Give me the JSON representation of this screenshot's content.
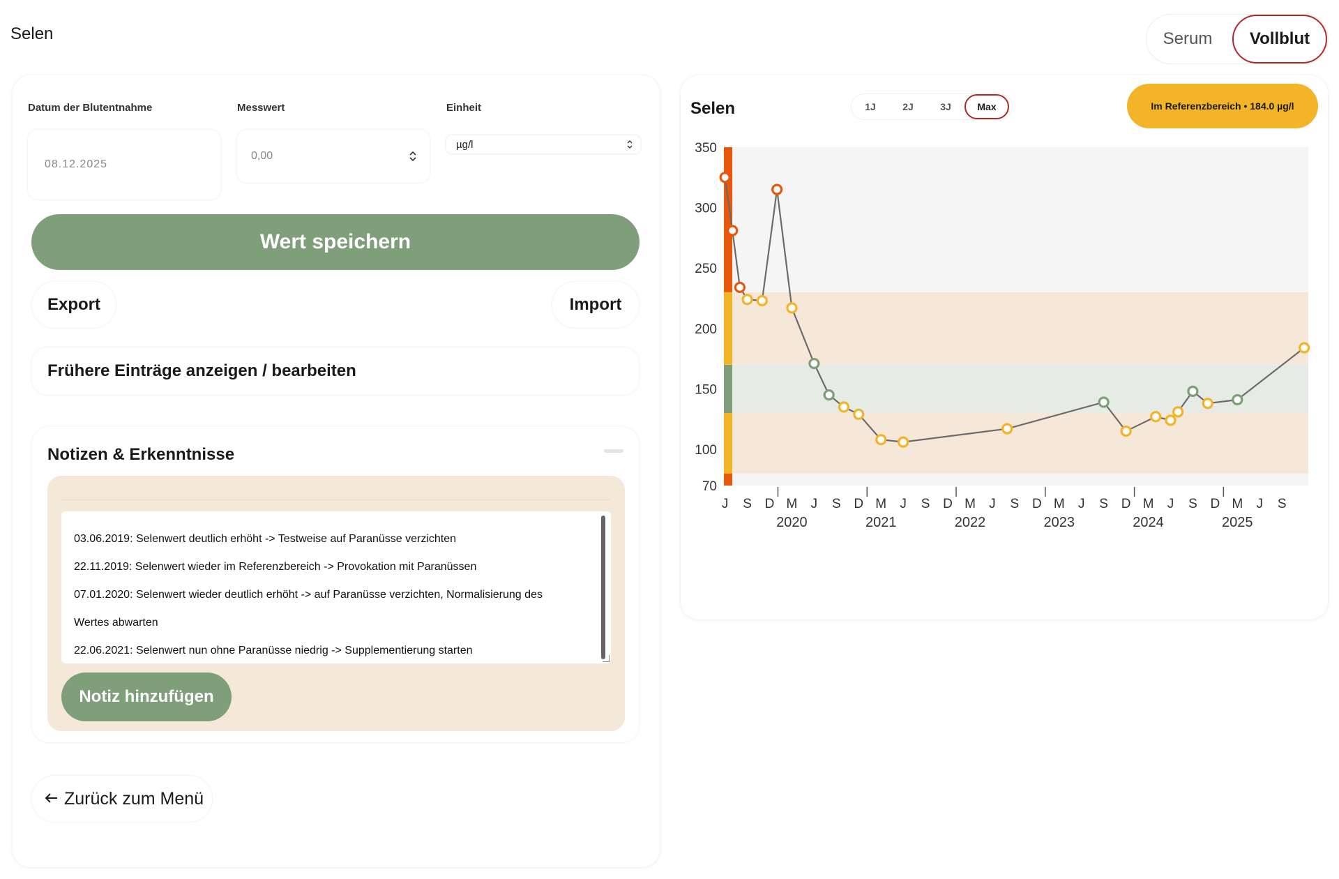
{
  "page": {
    "title": "Selen"
  },
  "sample_toggle": {
    "options": [
      "Serum",
      "Vollblut"
    ],
    "selected": "Vollblut"
  },
  "form": {
    "date_label": "Datum der Blutentnahme",
    "date_value": "08.12.2025",
    "value_label": "Messwert",
    "value_placeholder": "0,00",
    "unit_label": "Einheit",
    "unit_value": "µg/l",
    "save_label": "Wert speichern",
    "export_label": "Export",
    "import_label": "Import",
    "entries_label": "Frühere Einträge anzeigen / bearbeiten"
  },
  "notes": {
    "title": "Notizen & Erkenntnisse",
    "lines": [
      "03.06.2019: Selenwert deutlich erhöht -> Testweise auf Paranüsse verzichten",
      "22.11.2019: Selenwert wieder im Referenzbereich -> Provokation mit Paranüssen",
      "07.01.2020: Selenwert wieder deutlich erhöht -> auf Paranüsse verzichten, Normalisierung des",
      "Wertes abwarten",
      "22.06.2021: Selenwert nun ohne Paranüsse niedrig -> Supplementierung starten"
    ],
    "add_label": "Notiz hinzufügen"
  },
  "back": {
    "label": "Zurück zum Menü"
  },
  "chart_header": {
    "title": "Selen",
    "ranges": [
      "1J",
      "2J",
      "3J",
      "Max"
    ],
    "selected_range": "Max",
    "status": "Im Referenzbereich • 184.0 µg/l"
  },
  "chart_data": {
    "type": "line",
    "title": "Selen",
    "xlabel": "",
    "ylabel": "",
    "ylim": [
      70,
      350
    ],
    "y_ticks": [
      70,
      100,
      150,
      200,
      250,
      300,
      350
    ],
    "x_month_ticks": [
      "J",
      "S",
      "D",
      "M",
      "J",
      "S",
      "D",
      "M",
      "J",
      "S",
      "D",
      "M",
      "J",
      "S",
      "D",
      "M",
      "J",
      "S",
      "D",
      "M",
      "J",
      "S",
      "D",
      "M",
      "J",
      "S"
    ],
    "year_labels": [
      "2020",
      "2021",
      "2022",
      "2023",
      "2024",
      "2025"
    ],
    "bands": [
      {
        "from": 70,
        "to": 80,
        "color": "#e8580c"
      },
      {
        "from": 80,
        "to": 130,
        "color": "#f3b427"
      },
      {
        "from": 130,
        "to": 170,
        "color": "#7e9f79"
      },
      {
        "from": 170,
        "to": 230,
        "color": "#f3b427"
      },
      {
        "from": 230,
        "to": 350,
        "color": "#e8580c"
      }
    ],
    "status_colors": {
      "high": "#e8580c",
      "borderline": "#f3b427",
      "normal": "#7e9f79",
      "line": "#6b6b6b"
    },
    "points": [
      {
        "date": "2019-06",
        "value": 325,
        "status": "high"
      },
      {
        "date": "2019-07",
        "value": 281,
        "status": "high"
      },
      {
        "date": "2019-08",
        "value": 234,
        "status": "high"
      },
      {
        "date": "2019-09",
        "value": 224,
        "status": "borderline"
      },
      {
        "date": "2019-11",
        "value": 223,
        "status": "borderline"
      },
      {
        "date": "2020-01",
        "value": 315,
        "status": "high"
      },
      {
        "date": "2020-03",
        "value": 217,
        "status": "borderline"
      },
      {
        "date": "2020-06",
        "value": 171,
        "status": "normal"
      },
      {
        "date": "2020-08",
        "value": 145,
        "status": "normal"
      },
      {
        "date": "2020-10",
        "value": 135,
        "status": "borderline"
      },
      {
        "date": "2020-12",
        "value": 129,
        "status": "borderline"
      },
      {
        "date": "2021-03",
        "value": 108,
        "status": "borderline"
      },
      {
        "date": "2021-06",
        "value": 106,
        "status": "borderline"
      },
      {
        "date": "2022-08",
        "value": 117,
        "status": "borderline"
      },
      {
        "date": "2023-09",
        "value": 139,
        "status": "normal"
      },
      {
        "date": "2023-12",
        "value": 115,
        "status": "borderline"
      },
      {
        "date": "2024-04",
        "value": 127,
        "status": "borderline"
      },
      {
        "date": "2024-06",
        "value": 124,
        "status": "borderline"
      },
      {
        "date": "2024-07",
        "value": 131,
        "status": "borderline"
      },
      {
        "date": "2024-09",
        "value": 148,
        "status": "normal"
      },
      {
        "date": "2024-11",
        "value": 138,
        "status": "borderline"
      },
      {
        "date": "2025-03",
        "value": 141,
        "status": "normal"
      },
      {
        "date": "2025-12",
        "value": 184,
        "status": "borderline"
      }
    ]
  }
}
